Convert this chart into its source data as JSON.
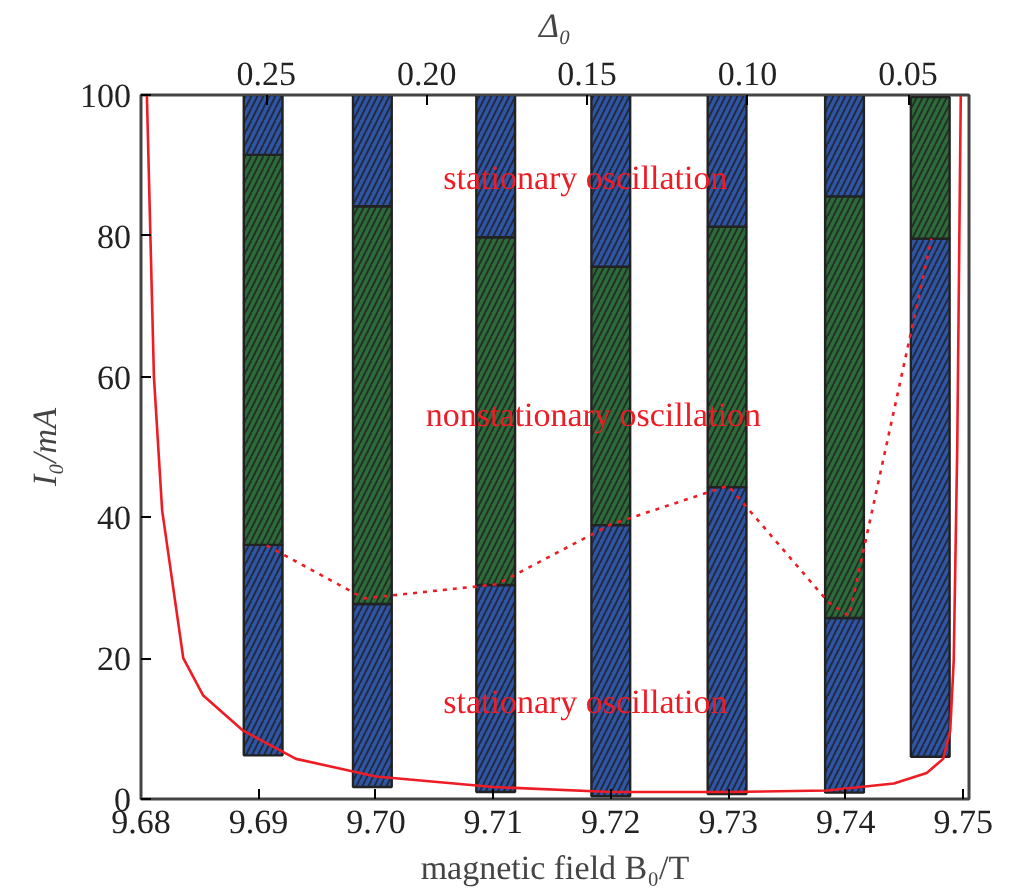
{
  "chart_data": {
    "type": "bar",
    "xlabel": "magnetic field B₀/T",
    "ylabel": "I₀/mA",
    "x2label": "Δ₀",
    "x": [
      9.6904,
      9.6997,
      9.7102,
      9.72,
      9.7299,
      9.7399,
      9.7472
    ],
    "series": [
      {
        "color": "#2f55a4",
        "base": [
          6.2,
          1.7,
          1.0,
          0.4,
          0.7,
          0.9,
          6.0
        ],
        "values": [
          29.9,
          26.0,
          29.4,
          38.5,
          43.6,
          24.8,
          73.6
        ]
      },
      {
        "color": "#2e6b3a",
        "base": [
          36.1,
          27.7,
          30.4,
          38.9,
          44.3,
          25.7,
          79.6
        ],
        "values": [
          55.4,
          56.5,
          49.4,
          36.7,
          37.0,
          59.9,
          20.1
        ]
      },
      {
        "color": "#2f55a4",
        "base": [
          91.5,
          84.2,
          79.8,
          75.6,
          81.3,
          85.6,
          null
        ],
        "values": [
          8.5,
          15.8,
          20.2,
          24.4,
          18.7,
          14.4,
          null
        ]
      },
      {
        "type": "line",
        "color": "#ee1c25",
        "line_style": "solid",
        "x": [
          9.6805,
          9.6808,
          9.6811,
          9.6818,
          9.6836,
          9.6853,
          9.6887,
          9.6932,
          9.7,
          9.71,
          9.72,
          9.73,
          9.7384,
          9.7441,
          9.7469,
          9.7483,
          9.7489,
          9.7492,
          9.7495,
          9.7498
        ],
        "values": [
          100,
          80,
          60,
          41,
          20,
          14.7,
          9.7,
          5.7,
          3.2,
          1.7,
          1.0,
          1.0,
          1.2,
          2.2,
          3.7,
          5.7,
          9.7,
          19.7,
          50,
          100
        ]
      },
      {
        "type": "line",
        "color": "#ee1c25",
        "line_style": "dotted",
        "x": [
          9.6907,
          9.699,
          9.7103,
          9.72,
          9.73,
          9.7385,
          9.7403,
          9.7473
        ],
        "values": [
          36,
          28.5,
          30.5,
          39,
          44.5,
          28,
          26,
          79.6
        ]
      }
    ],
    "xlim": [
      9.68,
      9.7505
    ],
    "xticks": [
      9.68,
      9.69,
      {
        "value": 9.7,
        "label": "9.70"
      },
      9.71,
      9.72,
      9.73,
      9.74,
      9.75
    ],
    "x2lim": [
      0.289,
      0.031
    ],
    "x2ticks": [
      0.25,
      {
        "value": 0.2,
        "label": "0.20"
      },
      0.15,
      {
        "value": 0.1,
        "label": "0.10"
      },
      0.05
    ],
    "ylim": [
      0,
      100
    ],
    "yticks": [
      0,
      20,
      40,
      60,
      80,
      100
    ],
    "grid": false,
    "annotations": [
      "stationary oscillation",
      "nonstationary oscillation",
      "stationary oscillation"
    ]
  }
}
